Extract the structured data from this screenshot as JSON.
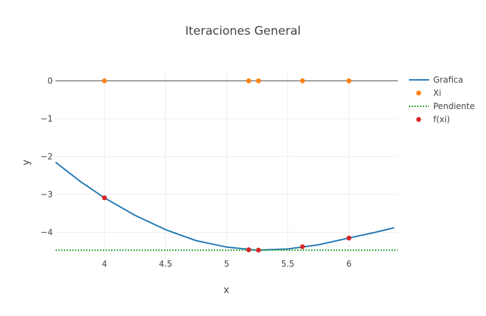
{
  "chart_data": {
    "type": "line",
    "title": "Iteraciones General",
    "xlabel": "x",
    "ylabel": "y",
    "xlim": [
      3.6,
      6.4
    ],
    "ylim": [
      -4.65,
      0.3
    ],
    "xticks": [
      4,
      4.5,
      5,
      5.5,
      6
    ],
    "xtick_labels": [
      "4",
      "4.5",
      "5",
      "5.5",
      "6"
    ],
    "yticks": [
      0,
      -1,
      -2,
      -3,
      -4
    ],
    "ytick_labels": [
      "0",
      "−1",
      "−2",
      "−3",
      "−4"
    ],
    "grid": true,
    "legend_position": "right",
    "zero_line": 0,
    "series": [
      {
        "name": "Grafica",
        "kind": "line",
        "color": "#1f77b4",
        "x": [
          3.6,
          3.8,
          4.0,
          4.25,
          4.5,
          4.75,
          5.0,
          5.25,
          5.5,
          5.75,
          6.0,
          6.2,
          6.37
        ],
        "y": [
          -2.15,
          -2.65,
          -3.09,
          -3.55,
          -3.93,
          -4.22,
          -4.39,
          -4.47,
          -4.44,
          -4.33,
          -4.15,
          -4.01,
          -3.88
        ]
      },
      {
        "name": "Xi",
        "kind": "markers",
        "color": "#ff7f0e",
        "x": [
          4.0,
          5.18,
          5.26,
          5.62,
          6.0
        ],
        "y": [
          0,
          0,
          0,
          0,
          0
        ]
      },
      {
        "name": "Pendiente",
        "kind": "dotted-line",
        "color": "#2ca02c",
        "x": [
          3.6,
          6.4
        ],
        "y": [
          -4.47,
          -4.47
        ]
      },
      {
        "name": "f(xi)",
        "kind": "markers",
        "color": "#d62728",
        "x": [
          4.0,
          5.18,
          5.26,
          5.62,
          6.0
        ],
        "y": [
          -3.09,
          -4.46,
          -4.47,
          -4.38,
          -4.15
        ]
      }
    ]
  }
}
